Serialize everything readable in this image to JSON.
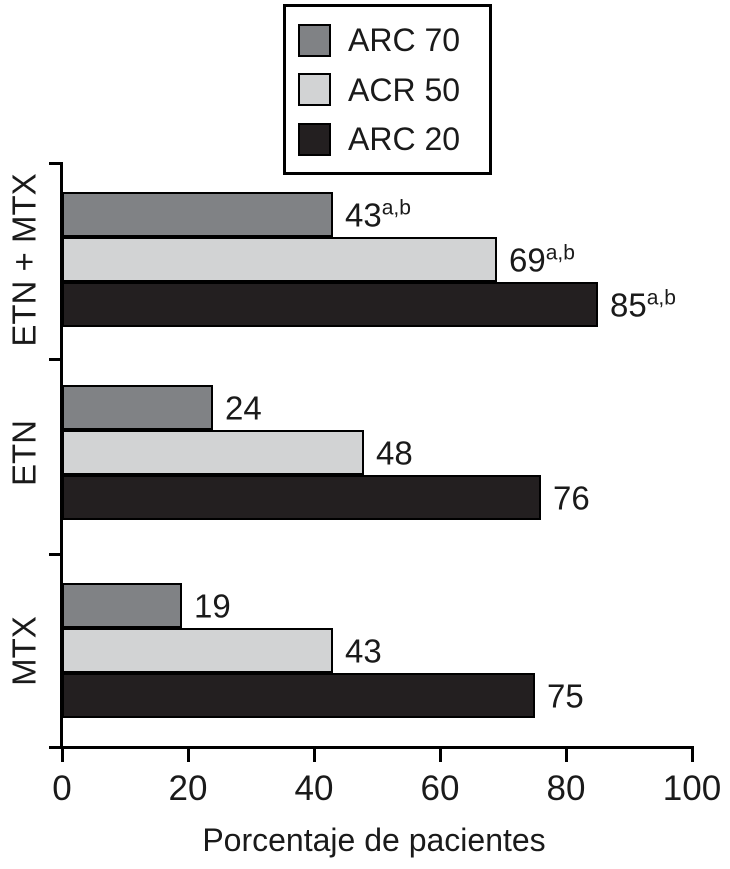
{
  "chart_data": {
    "type": "bar",
    "orientation": "horizontal",
    "title": "",
    "xlabel": "Porcentaje de pacientes",
    "ylabel": "",
    "xlim": [
      0,
      100
    ],
    "xticks": [
      0,
      20,
      40,
      60,
      80,
      100
    ],
    "grid": false,
    "legend_position": "top-center",
    "bar_outline_color": "#000000",
    "categories": [
      "ETN + MTX",
      "ETN",
      "MTX"
    ],
    "series": [
      {
        "name": "ARC 70",
        "color": "#808285",
        "values": [
          43,
          24,
          19
        ],
        "label_superscripts": [
          "a,b",
          "",
          ""
        ]
      },
      {
        "name": "ACR 50",
        "color": "#d2d3d4",
        "values": [
          69,
          48,
          43
        ],
        "label_superscripts": [
          "a,b",
          "",
          ""
        ]
      },
      {
        "name": "ARC 20",
        "color": "#231f20",
        "values": [
          85,
          76,
          75
        ],
        "label_superscripts": [
          "a,b",
          "",
          ""
        ]
      }
    ]
  }
}
